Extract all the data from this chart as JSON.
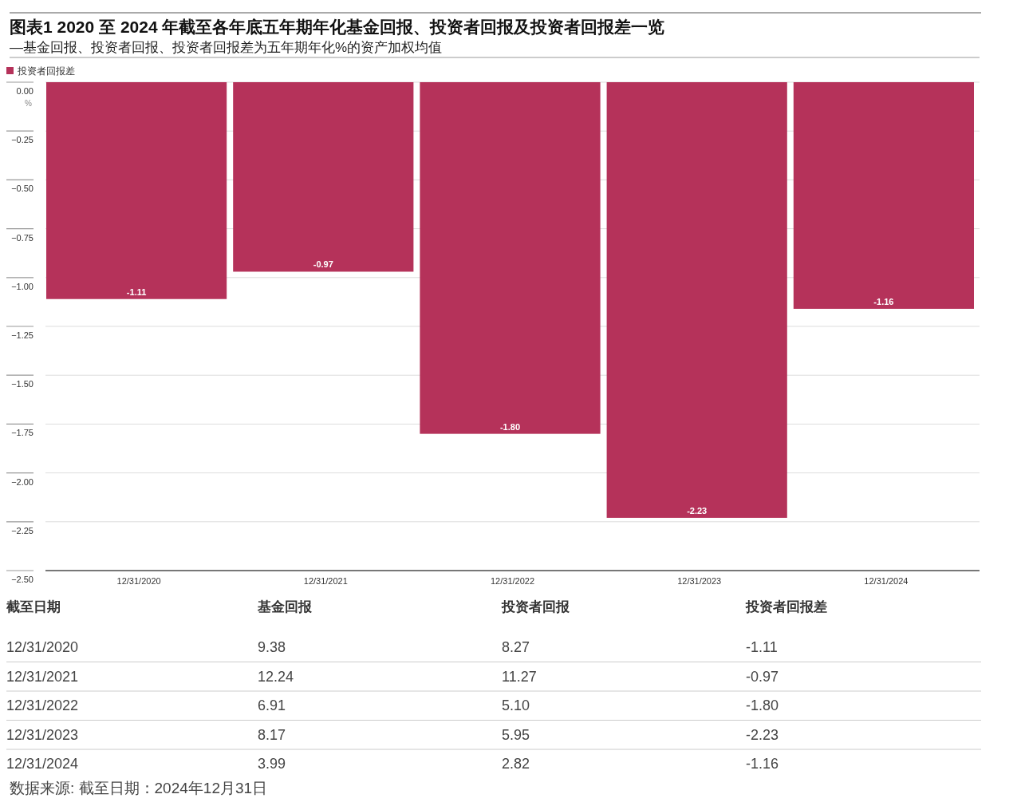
{
  "chart_data": [
    {
      "type": "bar",
      "title": "图表1 2020 至 2024 年截至各年底五年期年化基金回报、投资者回报及投资者回报差一览",
      "subtitle": "—基金回报、投资者回报、投资者回报差为五年期年化%的资产加权均值",
      "ylabel": "%",
      "categories": [
        "12/31/2020",
        "12/31/2021",
        "12/31/2022",
        "12/31/2023",
        "12/31/2024"
      ],
      "series": [
        {
          "name": "投资者回报差",
          "color": "#b5325a",
          "values": [
            -1.11,
            -0.97,
            -1.8,
            -2.23,
            -1.16
          ],
          "value_labels": [
            "-1.11",
            "-0.97",
            "-1.80",
            "-2.23",
            "-1.16"
          ]
        }
      ],
      "ylim": [
        -2.5,
        0
      ],
      "yticks": [
        {
          "value": 0,
          "label": "0.00"
        },
        {
          "value": -0.25,
          "label": "−0.25"
        },
        {
          "value": -0.5,
          "label": "−0.50"
        },
        {
          "value": -0.75,
          "label": "−0.75"
        },
        {
          "value": -1,
          "label": "−1.00"
        },
        {
          "value": -1.25,
          "label": "−1.25"
        },
        {
          "value": -1.5,
          "label": "−1.50"
        },
        {
          "value": -1.75,
          "label": "−1.75"
        },
        {
          "value": -2,
          "label": "−2.00"
        },
        {
          "value": -2.25,
          "label": "−2.25"
        },
        {
          "value": -2.5,
          "label": "−2.50"
        }
      ],
      "grid": "y",
      "legend": "top left"
    },
    {
      "type": "other",
      "xlabel": "截至日期",
      "categories": [
        "12/31/2020",
        "12/31/2021",
        "12/31/2022",
        "12/31/2023",
        "12/31/2024"
      ],
      "series": [
        {
          "name": "基金回报",
          "values": [
            9.38,
            12.24,
            6.91,
            8.17,
            3.99
          ],
          "value_labels": [
            "9.38",
            "12.24",
            "6.91",
            "8.17",
            "3.99"
          ]
        },
        {
          "name": "投资者回报",
          "values": [
            8.27,
            11.27,
            5.1,
            5.95,
            2.82
          ],
          "value_labels": [
            "8.27",
            "11.27",
            "5.10",
            "5.95",
            "2.82"
          ]
        },
        {
          "name": "投资者回报差",
          "values": [
            -1.11,
            -0.97,
            -1.8,
            -2.23,
            -1.16
          ],
          "value_labels": [
            "-1.11",
            "-0.97",
            "-1.80",
            "-2.23",
            "-1.16"
          ]
        }
      ],
      "annotations": [
        "数据来源: 截至日期：2024年12月31日"
      ]
    }
  ]
}
